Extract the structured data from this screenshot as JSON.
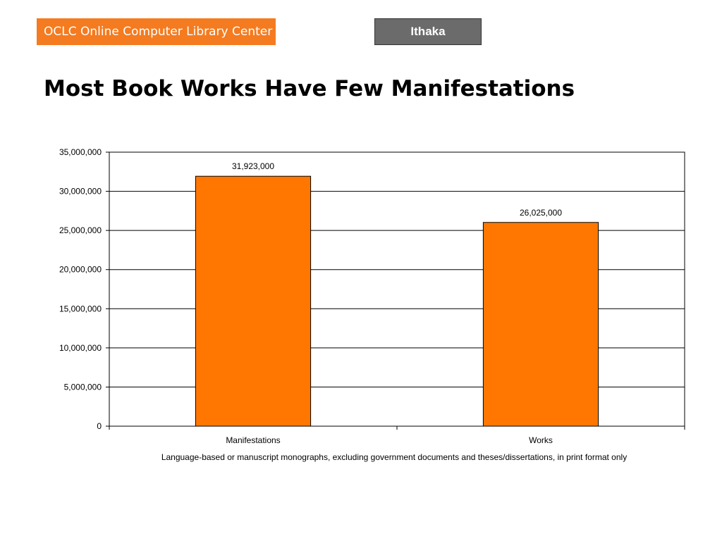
{
  "header": {
    "brand": "OCLC Online Computer Library Center",
    "partner": "Ithaka"
  },
  "title": "Most Book Works Have Few Manifestations",
  "colors": {
    "bar": "#ff7700",
    "brand": "#f47b20",
    "partner": "#6b6b6b"
  },
  "chart_data": {
    "type": "bar",
    "categories": [
      "Manifestations",
      "Works"
    ],
    "values": [
      31923000,
      26025000
    ],
    "data_labels": [
      "31,923,000",
      "26,025,000"
    ],
    "ylim": [
      0,
      35000000
    ],
    "yticks": [
      0,
      5000000,
      10000000,
      15000000,
      20000000,
      25000000,
      30000000,
      35000000
    ],
    "ytick_labels": [
      "0",
      "5,000,000",
      "10,000,000",
      "15,000,000",
      "20,000,000",
      "25,000,000",
      "30,000,000",
      "35,000,000"
    ],
    "xlabel": "Language-based or manuscript monographs, excluding government documents and theses/dissertations, in print format only",
    "ylabel": "",
    "grid": true,
    "legend": "none"
  }
}
